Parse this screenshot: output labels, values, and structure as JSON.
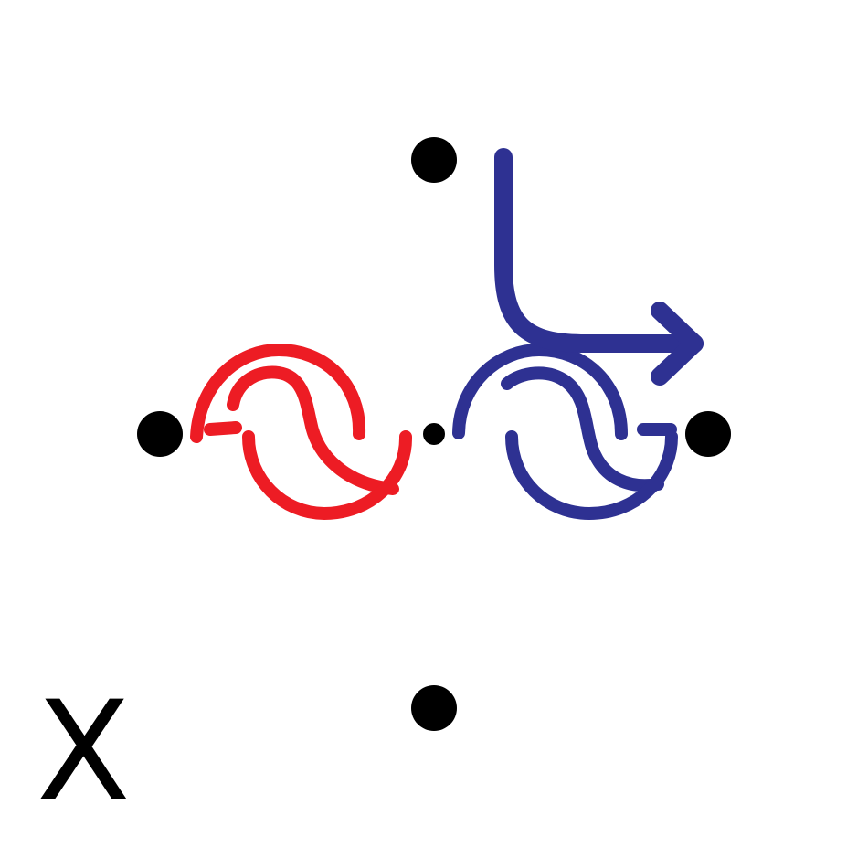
{
  "diagram": {
    "label": "X",
    "colors": {
      "left_symbol": "#ed1c24",
      "right_symbol": "#2e3192",
      "arrow": "#2e3192",
      "dots": "#000000",
      "background": "#ffffff"
    },
    "icons": {
      "left_symbol": "wave-symbol-icon",
      "right_symbol": "wave-symbol-icon",
      "arrow": "bent-arrow-right-icon"
    }
  }
}
